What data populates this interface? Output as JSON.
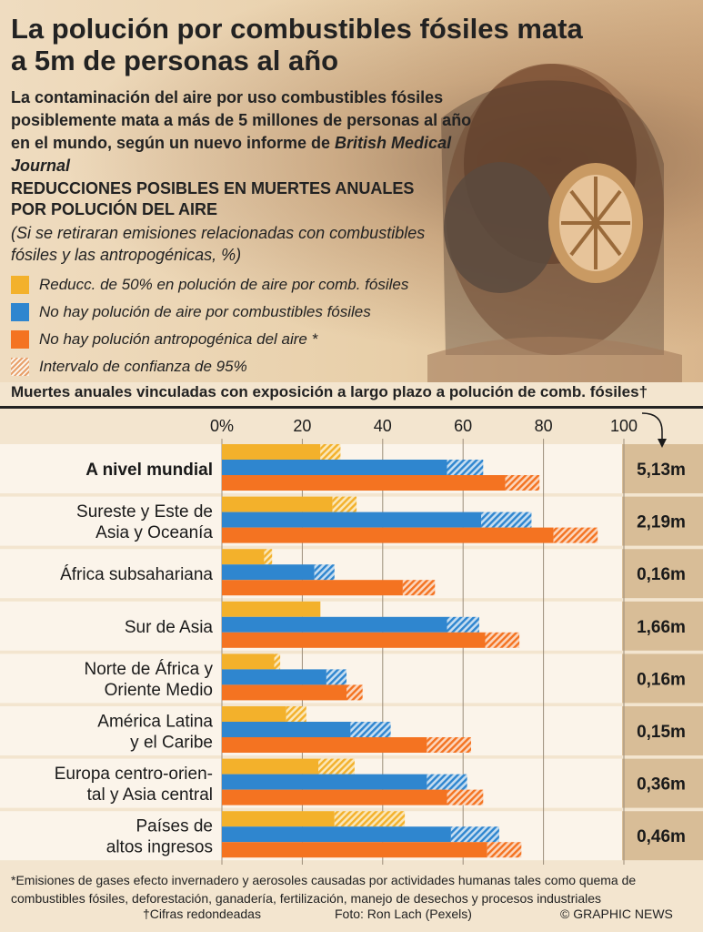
{
  "header": {
    "title": "La polución por combustibles fósiles mata a 5m de personas al año",
    "intro_main": "La contaminación del aire por uso combustibles fósiles posiblemente mata a más de 5 millones de personas al año en el mundo, según un nuevo informe de",
    "intro_source": "British Medical Journal",
    "section_heading": "REDUCCIONES POSIBLES EN MUERTES ANUALES POR POLUCIÓN DEL AIRE",
    "section_note": "(Si se retiraran emisiones relacionadas con combustibles fósiles y las antropogénicas, %)"
  },
  "legend": [
    {
      "label": "Reducc. de 50% en polución de aire por comb. fósiles",
      "color": "#f3b12b"
    },
    {
      "label": "No hay polución de aire por combustibles fósiles",
      "color": "#2f86cf"
    },
    {
      "label": "No hay polución antropogénica del aire *",
      "color": "#f47321"
    },
    {
      "label": "Intervalo de confianza de 95%",
      "pattern": "hatched"
    }
  ],
  "chart_heading": "Muertes anuales vinculadas con exposición a largo plazo a polución de comb. fósiles†",
  "chart_data": {
    "type": "bar",
    "orientation": "horizontal",
    "xlim": [
      0,
      100
    ],
    "ticks": [
      0,
      20,
      40,
      60,
      80,
      100
    ],
    "tick_labels": [
      "0%",
      "20",
      "40",
      "60",
      "80",
      "100"
    ],
    "series": [
      {
        "name": "Reducc. de 50% en polución de aire por comb. fósiles",
        "color": "#f3b12b",
        "values": [
          24.5,
          27.5,
          10.5,
          24.5,
          13,
          16,
          24,
          28
        ]
      },
      {
        "name": "No hay polución de aire por combustibles fósiles",
        "color": "#2f86cf",
        "values": [
          56,
          64.5,
          23,
          56,
          26,
          32,
          51,
          57
        ]
      },
      {
        "name": "No hay polución antropogénica del aire *",
        "color": "#f47321",
        "values": [
          70.5,
          82.5,
          45,
          65.5,
          31,
          51,
          56,
          66
        ]
      }
    ],
    "ci_upper": [
      [
        29.5,
        33.5,
        12.5,
        24.5,
        14.5,
        21,
        33,
        45.5
      ],
      [
        65,
        77,
        28,
        64,
        31,
        42,
        61,
        69
      ]
    ],
    "ci_upper_orange": [
      79,
      93.5,
      53,
      74,
      35,
      62,
      65,
      74.5
    ],
    "categories": [
      [
        "A nivel mundial"
      ],
      [
        "Sureste y Este de",
        "Asia y Oceanía"
      ],
      [
        "África subsahariana"
      ],
      [
        "Sur de Asia"
      ],
      [
        "Norte de África y",
        "Oriente Medio"
      ],
      [
        "América Latina",
        "y el Caribe"
      ],
      [
        "Europa centro-orien-",
        "tal y Asia central"
      ],
      [
        "Países de",
        "altos ingresos"
      ]
    ],
    "category_bold": [
      true,
      false,
      false,
      false,
      false,
      false,
      false,
      false
    ],
    "deaths": [
      "5,13m",
      "2,19m",
      "0,16m",
      "1,66m",
      "0,16m",
      "0,15m",
      "0,36m",
      "0,46m"
    ],
    "grid": true
  },
  "footer": {
    "footnote": "*Emisiones de gases efecto invernadero y aerosoles causadas por actividades humanas tales como quema de combustibles fósiles, deforestación, ganadería, fertilización, manejo de desechos y procesos industriales",
    "rounding_note": "†Cifras redondeadas",
    "photo_credit": "Foto: Ron Lach (Pexels)",
    "copyright": "© GRAPHIC NEWS"
  }
}
